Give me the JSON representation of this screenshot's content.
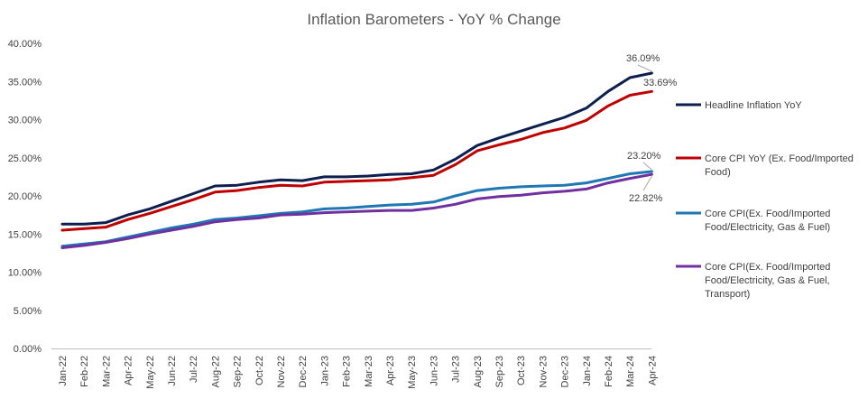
{
  "chart_data": {
    "type": "line",
    "title": "Inflation Barometers - YoY % Change",
    "xlabel": "",
    "ylabel": "",
    "ylim": [
      0,
      40
    ],
    "yticks": [
      0,
      5,
      10,
      15,
      20,
      25,
      30,
      35,
      40
    ],
    "ytick_labels": [
      "0.00%",
      "5.00%",
      "10.00%",
      "15.00%",
      "20.00%",
      "25.00%",
      "30.00%",
      "35.00%",
      "40.00%"
    ],
    "grid": false,
    "legend_position": "right",
    "categories": [
      "Jan-22",
      "Feb-22",
      "Mar-22",
      "Apr-22",
      "May-22",
      "Jun-22",
      "Jul-22",
      "Aug-22",
      "Sep-22",
      "Oct-22",
      "Nov-22",
      "Dec-22",
      "Jan-23",
      "Feb-23",
      "Mar-23",
      "Apr-23",
      "May-23",
      "Jun-23",
      "Jul-23",
      "Aug-23",
      "Sep-23",
      "Oct-23",
      "Nov-23",
      "Dec-23",
      "Jan-24",
      "Feb-24",
      "Mar-24",
      "Apr-24"
    ],
    "series": [
      {
        "name": "Headline Inflation YoY",
        "color": "#0d1f4f",
        "values": [
          16.3,
          16.3,
          16.5,
          17.5,
          18.3,
          19.3,
          20.3,
          21.3,
          21.4,
          21.8,
          22.1,
          22.0,
          22.5,
          22.5,
          22.6,
          22.8,
          22.9,
          23.4,
          24.8,
          26.6,
          27.6,
          28.5,
          29.4,
          30.3,
          31.5,
          33.7,
          35.5,
          36.09
        ],
        "end_label": "36.09%"
      },
      {
        "name": "Core CPI YoY (Ex. Food/Imported Food)",
        "legend_lines": [
          "Core CPI YoY (Ex. Food/Imported",
          "Food)"
        ],
        "color": "#c00000",
        "values": [
          15.5,
          15.7,
          15.9,
          16.9,
          17.7,
          18.6,
          19.5,
          20.5,
          20.7,
          21.1,
          21.4,
          21.3,
          21.8,
          21.9,
          22.0,
          22.1,
          22.4,
          22.7,
          24.1,
          25.9,
          26.7,
          27.4,
          28.3,
          28.9,
          29.9,
          31.8,
          33.2,
          33.69
        ],
        "end_label": "33.69%"
      },
      {
        "name": "Core CPI(Ex. Food/Imported Food/Electricity, Gas & Fuel)",
        "legend_lines": [
          "Core CPI(Ex. Food/Imported",
          "Food/Electricity, Gas & Fuel)"
        ],
        "color": "#1f77b4",
        "values": [
          13.4,
          13.7,
          14.0,
          14.6,
          15.2,
          15.8,
          16.3,
          16.9,
          17.1,
          17.4,
          17.7,
          17.9,
          18.3,
          18.4,
          18.6,
          18.8,
          18.9,
          19.2,
          20.0,
          20.7,
          21.0,
          21.2,
          21.3,
          21.4,
          21.7,
          22.3,
          22.9,
          23.2
        ],
        "end_label": "23.20%"
      },
      {
        "name": "Core CPI(Ex. Food/Imported Food/Electricity, Gas & Fuel, Transport)",
        "legend_lines": [
          "Core CPI(Ex. Food/Imported",
          "Food/Electricity, Gas & Fuel,",
          "Transport)"
        ],
        "color": "#7030a0",
        "values": [
          13.2,
          13.5,
          13.9,
          14.4,
          15.0,
          15.5,
          16.0,
          16.6,
          16.9,
          17.1,
          17.5,
          17.6,
          17.8,
          17.9,
          18.0,
          18.1,
          18.1,
          18.4,
          18.9,
          19.6,
          19.9,
          20.1,
          20.4,
          20.6,
          20.9,
          21.7,
          22.3,
          22.82
        ],
        "end_label": "22.82%"
      }
    ]
  }
}
